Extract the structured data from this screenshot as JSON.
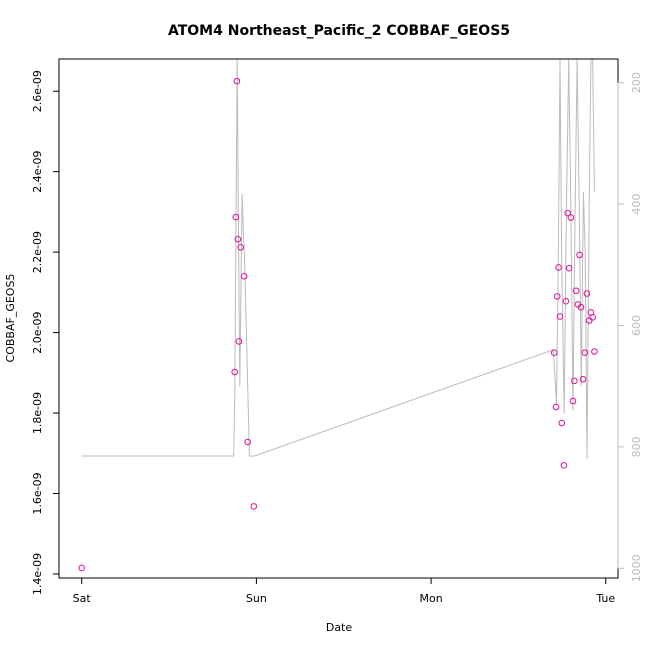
{
  "chart_data": {
    "type": "scatter",
    "title": "ATOM4 Northeast_Pacific_2 COBBAF_GEOS5",
    "xlabel": "Date",
    "ylabel": "COBBAF_GEOS5",
    "x_unit": "days since Sat 00:00",
    "xlim": [
      -0.13,
      3.07
    ],
    "ylim": [
      1.39e-09,
      2.68e-09
    ],
    "x_ticks": [
      {
        "value": 0,
        "label": "Sat"
      },
      {
        "value": 1,
        "label": "Sun"
      },
      {
        "value": 2,
        "label": "Mon"
      },
      {
        "value": 3,
        "label": "Tue"
      }
    ],
    "y_ticks": [
      {
        "value": 1.4e-09,
        "label": "1.4e-09"
      },
      {
        "value": 1.6e-09,
        "label": "1.6e-09"
      },
      {
        "value": 1.8e-09,
        "label": "1.8e-09"
      },
      {
        "value": 2e-09,
        "label": "2.0e-09"
      },
      {
        "value": 2.2e-09,
        "label": "2.2e-09"
      },
      {
        "value": 2.4e-09,
        "label": "2.4e-09"
      },
      {
        "value": 2.6e-09,
        "label": "2.6e-09"
      }
    ],
    "right_axis": {
      "color": "#bbbbbb",
      "reversed": true,
      "range": [
        161,
        1016
      ],
      "ticks": [
        {
          "value": 200,
          "label": "200"
        },
        {
          "value": 400,
          "label": "400"
        },
        {
          "value": 600,
          "label": "600"
        },
        {
          "value": 800,
          "label": "800"
        },
        {
          "value": 1000,
          "label": "1000"
        }
      ]
    },
    "series": [
      {
        "marker": "open-circle",
        "color": "#e0109a",
        "points": [
          {
            "x": 0.0,
            "y": 1.415e-09
          },
          {
            "x": 0.876,
            "y": 1.902e-09
          },
          {
            "x": 0.882,
            "y": 2.287e-09
          },
          {
            "x": 0.888,
            "y": 2.625e-09
          },
          {
            "x": 0.894,
            "y": 2.232e-09
          },
          {
            "x": 0.9,
            "y": 1.978e-09
          },
          {
            "x": 0.91,
            "y": 2.212e-09
          },
          {
            "x": 0.93,
            "y": 2.14e-09
          },
          {
            "x": 0.95,
            "y": 1.728e-09
          },
          {
            "x": 0.985,
            "y": 1.568e-09
          },
          {
            "x": 2.705,
            "y": 1.95e-09
          },
          {
            "x": 2.715,
            "y": 1.815e-09
          },
          {
            "x": 2.722,
            "y": 2.09e-09
          },
          {
            "x": 2.73,
            "y": 2.162e-09
          },
          {
            "x": 2.738,
            "y": 2.04e-09
          },
          {
            "x": 2.748,
            "y": 1.775e-09
          },
          {
            "x": 2.76,
            "y": 1.67e-09
          },
          {
            "x": 2.772,
            "y": 2.078e-09
          },
          {
            "x": 2.782,
            "y": 2.297e-09
          },
          {
            "x": 2.79,
            "y": 2.16e-09
          },
          {
            "x": 2.8,
            "y": 2.286e-09
          },
          {
            "x": 2.812,
            "y": 1.83e-09
          },
          {
            "x": 2.82,
            "y": 1.88e-09
          },
          {
            "x": 2.83,
            "y": 2.104e-09
          },
          {
            "x": 2.84,
            "y": 2.07e-09
          },
          {
            "x": 2.85,
            "y": 2.193e-09
          },
          {
            "x": 2.858,
            "y": 2.063e-09
          },
          {
            "x": 2.87,
            "y": 1.884e-09
          },
          {
            "x": 2.88,
            "y": 1.95e-09
          },
          {
            "x": 2.892,
            "y": 2.097e-09
          },
          {
            "x": 2.905,
            "y": 2.03e-09
          },
          {
            "x": 2.915,
            "y": 2.05e-09
          },
          {
            "x": 2.925,
            "y": 2.038e-09
          },
          {
            "x": 2.935,
            "y": 1.953e-09
          }
        ]
      },
      {
        "marker": "line",
        "color": "#bbbbbb",
        "axis": "right",
        "points": [
          {
            "x": 0.0,
            "y": 815
          },
          {
            "x": 0.87,
            "y": 815
          },
          {
            "x": 0.876,
            "y": 720
          },
          {
            "x": 0.884,
            "y": 400
          },
          {
            "x": 0.89,
            "y": 161
          },
          {
            "x": 0.897,
            "y": 430
          },
          {
            "x": 0.905,
            "y": 700
          },
          {
            "x": 0.918,
            "y": 383
          },
          {
            "x": 0.935,
            "y": 520
          },
          {
            "x": 0.96,
            "y": 815
          },
          {
            "x": 0.99,
            "y": 815
          },
          {
            "x": 2.7,
            "y": 640
          },
          {
            "x": 2.718,
            "y": 730
          },
          {
            "x": 2.728,
            "y": 500
          },
          {
            "x": 2.738,
            "y": 161
          },
          {
            "x": 2.748,
            "y": 500
          },
          {
            "x": 2.762,
            "y": 745
          },
          {
            "x": 2.775,
            "y": 400
          },
          {
            "x": 2.788,
            "y": 161
          },
          {
            "x": 2.8,
            "y": 400
          },
          {
            "x": 2.812,
            "y": 740
          },
          {
            "x": 2.824,
            "y": 420
          },
          {
            "x": 2.836,
            "y": 161
          },
          {
            "x": 2.848,
            "y": 400
          },
          {
            "x": 2.86,
            "y": 700
          },
          {
            "x": 2.872,
            "y": 380
          },
          {
            "x": 2.882,
            "y": 480
          },
          {
            "x": 2.893,
            "y": 820
          },
          {
            "x": 2.905,
            "y": 400
          },
          {
            "x": 2.915,
            "y": 161
          },
          {
            "x": 2.925,
            "y": 161
          },
          {
            "x": 2.935,
            "y": 380
          }
        ]
      }
    ],
    "grid": false,
    "legend": "none"
  }
}
